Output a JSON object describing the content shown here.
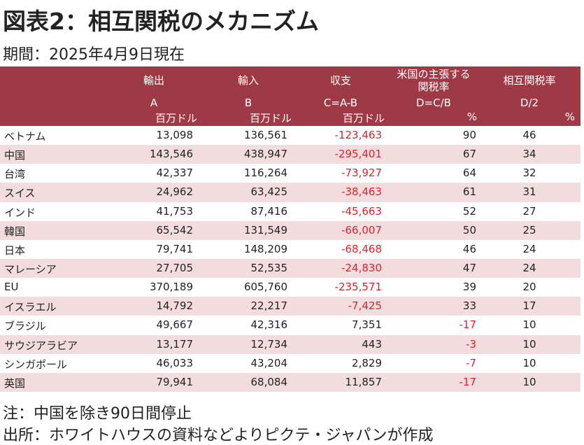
{
  "title": "図表2：相互関税のメカニズム",
  "subtitle": "期間：2025年4月9日現在",
  "table": {
    "columns": [
      {
        "name": [
          "輸出"
        ],
        "code": "A",
        "unit": "百万ドル"
      },
      {
        "name": [
          "輸入"
        ],
        "code": "B",
        "unit": "百万ドル"
      },
      {
        "name": [
          "収支"
        ],
        "code": "C=A-B",
        "unit": "百万ドル"
      },
      {
        "name": [
          "米国の主張する",
          "関税率"
        ],
        "code": "D=C/B",
        "unit": "%"
      },
      {
        "name": [
          "相互関税率"
        ],
        "code": "D/2",
        "unit": "%"
      }
    ],
    "rows": [
      [
        "ベトナム",
        "13,098",
        "136,561",
        "-123,463",
        "90",
        "46"
      ],
      [
        "中国",
        "143,546",
        "438,947",
        "-295,401",
        "67",
        "34"
      ],
      [
        "台湾",
        "42,337",
        "116,264",
        "-73,927",
        "64",
        "32"
      ],
      [
        "スイス",
        "24,962",
        "63,425",
        "-38,463",
        "61",
        "31"
      ],
      [
        "インド",
        "41,753",
        "87,416",
        "-45,663",
        "52",
        "27"
      ],
      [
        "韓国",
        "65,542",
        "131,549",
        "-66,007",
        "50",
        "25"
      ],
      [
        "日本",
        "79,741",
        "148,209",
        "-68,468",
        "46",
        "24"
      ],
      [
        "マレーシア",
        "27,705",
        "52,535",
        "-24,830",
        "47",
        "24"
      ],
      [
        "EU",
        "370,189",
        "605,760",
        "-235,571",
        "39",
        "20"
      ],
      [
        "イスラエル",
        "14,792",
        "22,217",
        "-7,425",
        "33",
        "17"
      ],
      [
        "ブラジル",
        "49,667",
        "42,316",
        "7,351",
        "-17",
        "10"
      ],
      [
        "サウジアラビア",
        "13,177",
        "12,734",
        "443",
        "-3",
        "10"
      ],
      [
        "シンガポール",
        "46,033",
        "43,204",
        "2,829",
        "-7",
        "10"
      ],
      [
        "英国",
        "79,941",
        "68,084",
        "11,857",
        "-17",
        "10"
      ]
    ]
  },
  "notes": [
    "注：中国を除き90日間停止",
    "出所：ホワイトハウスの資料などよりピクテ・ジャパンが作成"
  ]
}
